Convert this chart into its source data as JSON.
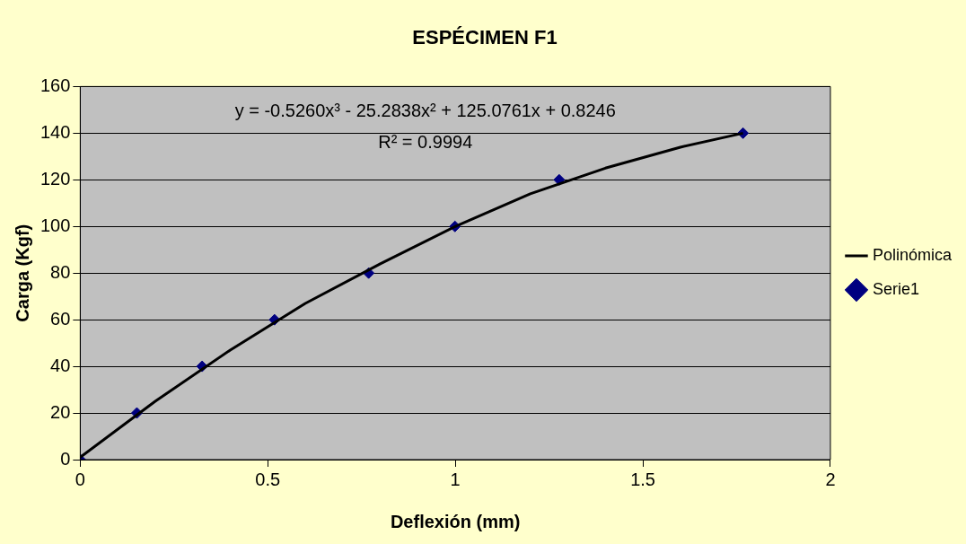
{
  "chart_data": {
    "type": "scatter",
    "title": "ESPÉCIMEN F1",
    "xlabel": "Deflexión (mm)",
    "ylabel": "Carga (Kgf)",
    "xlim": [
      0,
      2
    ],
    "xticks": [
      0,
      0.5,
      1,
      1.5,
      2
    ],
    "ylim": [
      0,
      160
    ],
    "yticks": [
      0,
      20,
      40,
      60,
      80,
      100,
      120,
      140,
      160
    ],
    "grid": "y",
    "legend": "right",
    "marker": "diamond",
    "annotations": [
      "y = -0.5260x³ - 25.2838x² + 125.0761x + 0.8246",
      "R² = 0.9994"
    ],
    "series": [
      {
        "name": "Serie1",
        "color": "#000080",
        "x": [
          0,
          0.151,
          0.325,
          0.518,
          0.769,
          0.999,
          1.277,
          1.767
        ],
        "values": [
          0,
          20,
          40,
          60,
          80,
          100,
          120,
          140
        ]
      },
      {
        "name": "Polinómica",
        "type": "line",
        "marker": "none",
        "color": "#000000",
        "x": [
          0,
          0.2,
          0.4,
          0.6,
          0.8,
          1.0,
          1.2,
          1.4,
          1.6,
          1.767
        ],
        "values": [
          1,
          25,
          47,
          67,
          84,
          100,
          114,
          125,
          134,
          140
        ]
      }
    ]
  }
}
